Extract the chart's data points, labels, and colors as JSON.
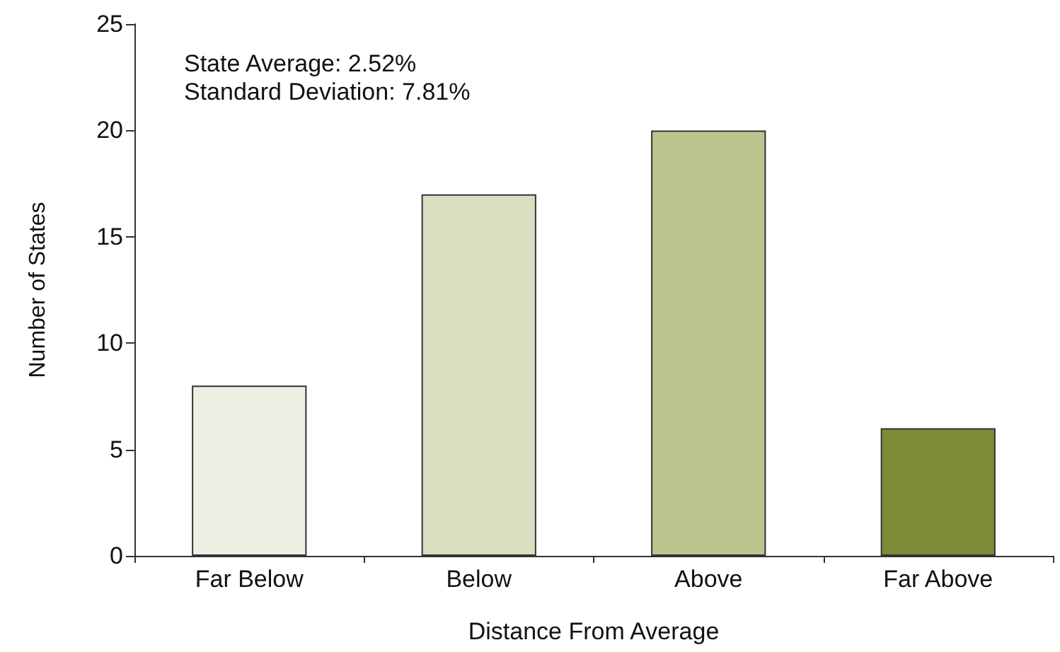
{
  "chart_data": {
    "type": "bar",
    "xlabel": "Distance From Average",
    "ylabel": "Number of States",
    "categories": [
      "Far Below",
      "Below",
      "Above",
      "Far Above"
    ],
    "values": [
      8,
      17,
      20,
      6
    ],
    "colors": [
      "#eeeee2",
      "#dadec1",
      "#bec48f",
      "#7f8a37"
    ],
    "ylim": [
      0,
      25
    ],
    "yticks": [
      0,
      5,
      10,
      15,
      20,
      25
    ],
    "grid": false,
    "annotations": [
      "State Average: 2.52%",
      "Standard Deviation: 7.81%"
    ]
  }
}
